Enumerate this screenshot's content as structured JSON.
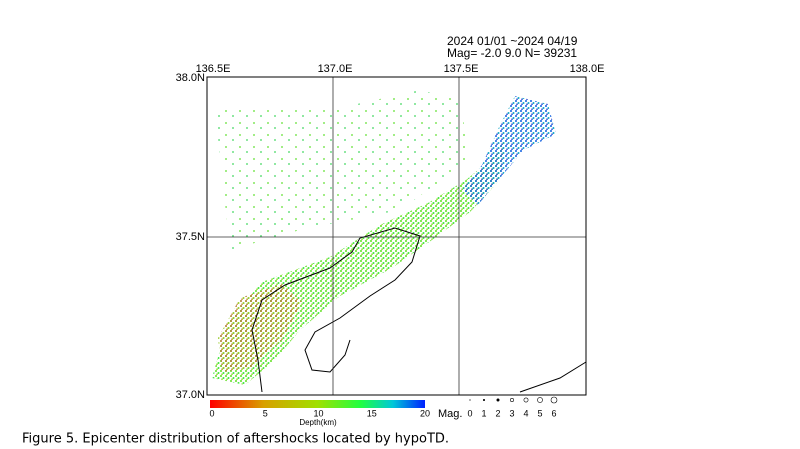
{
  "header": {
    "period": "2024 01/01 ~2024 04/19",
    "stats": "Mag= -2.0  9.0  N=  39231"
  },
  "map": {
    "lon_labels": [
      "136.5E",
      "137.0E",
      "137.5E",
      "138.0E"
    ],
    "lat_labels": [
      "38.0N",
      "37.5N",
      "37.0N"
    ]
  },
  "depth_scale": {
    "title": "Depth(km)",
    "ticks": [
      "0",
      "5",
      "10",
      "15",
      "20"
    ]
  },
  "magnitude_scale": {
    "title": "Mag.",
    "ticks": [
      "0",
      "1",
      "2",
      "3",
      "4",
      "5",
      "6"
    ]
  },
  "caption": "Figure 5.    Epicenter distribution of aftershocks located by hypoTD."
}
